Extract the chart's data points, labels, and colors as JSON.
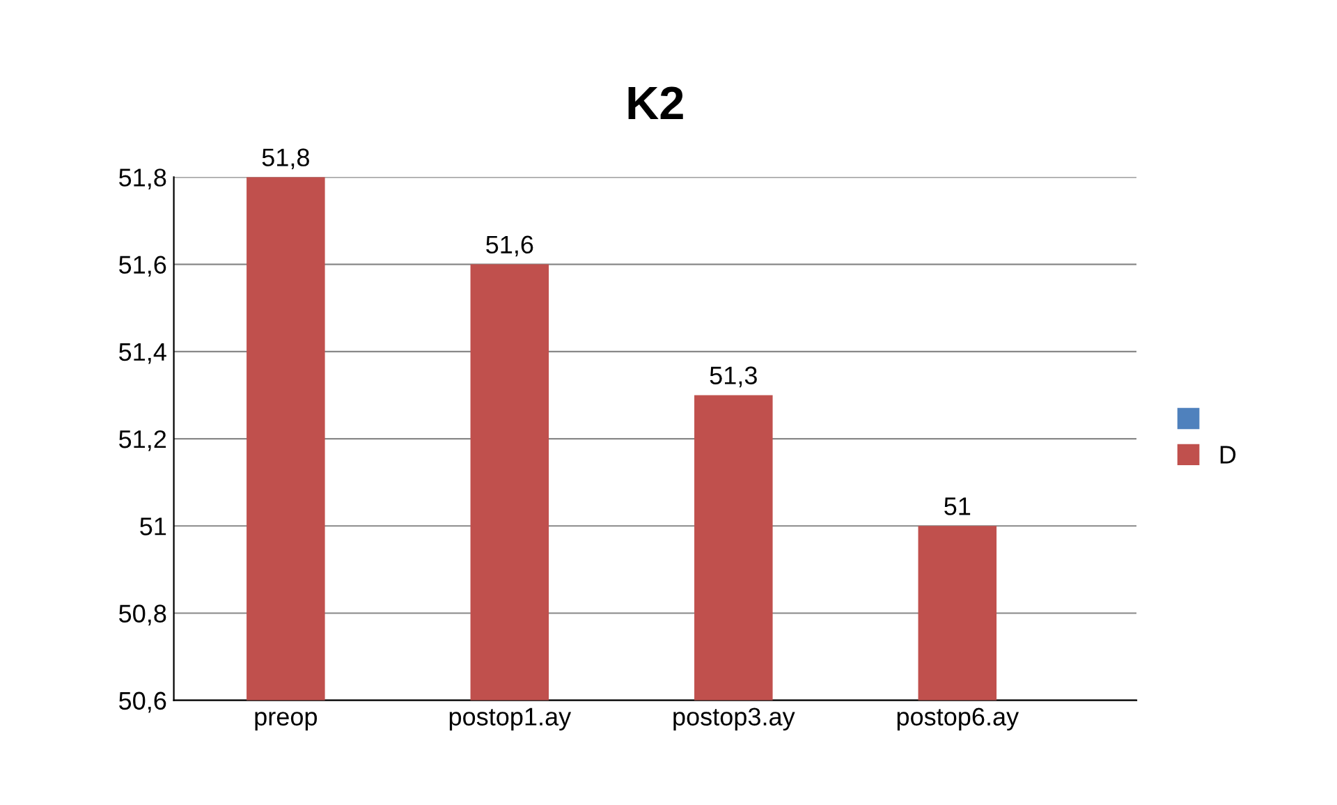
{
  "chart_data": {
    "type": "bar",
    "title": "K2",
    "categories": [
      "preop",
      "postop1.ay",
      "postop3.ay",
      "postop6.ay"
    ],
    "series": [
      {
        "color": "#4f81bd",
        "values": [
          null,
          null,
          null,
          null
        ]
      },
      {
        "name": "D",
        "color": "#c0504d",
        "values": [
          51.8,
          51.6,
          51.3,
          51.0
        ],
        "value_labels": [
          "51,8",
          "51,6",
          "51,3",
          "51"
        ]
      }
    ],
    "ylim": [
      50.6,
      51.8
    ],
    "yticks": [
      {
        "value": 50.6,
        "label": "50,6"
      },
      {
        "value": 50.8,
        "label": "50,8"
      },
      {
        "value": 51.0,
        "label": "51"
      },
      {
        "value": 51.2,
        "label": "51,2"
      },
      {
        "value": 51.4,
        "label": "51,4"
      },
      {
        "value": 51.6,
        "label": "51,6"
      },
      {
        "value": 51.8,
        "label": "51,8"
      }
    ],
    "grid": "y",
    "legend": "right"
  }
}
